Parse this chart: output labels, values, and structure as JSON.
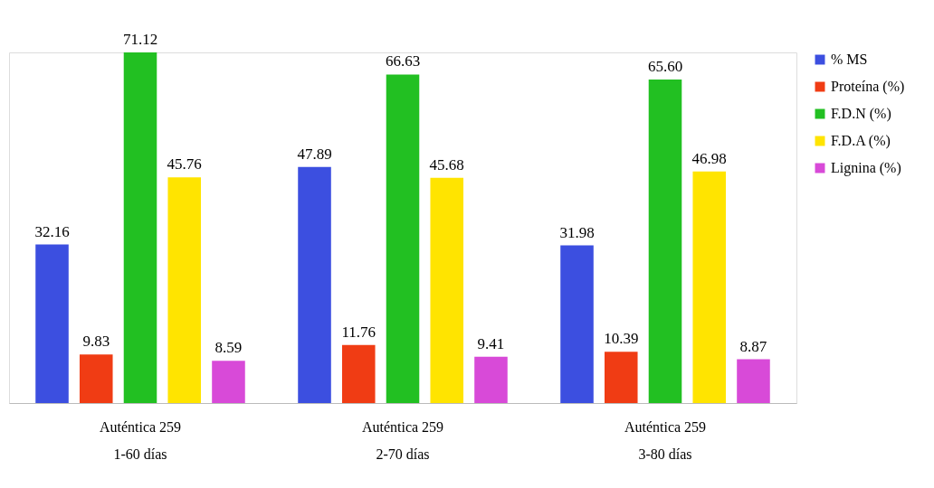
{
  "chart_data": {
    "type": "bar",
    "categories": [
      "Auténtica 259\n1-60 días",
      "Auténtica 259\n2-70 días",
      "Auténtica 259\n3-80 días"
    ],
    "series": [
      {
        "name": "% MS",
        "color": "#3c4fe0",
        "values": [
          32.16,
          47.89,
          31.98
        ],
        "value_labels": [
          "32.16",
          "47.89",
          "31.98"
        ]
      },
      {
        "name": "Proteína (%)",
        "color": "#f03c14",
        "values": [
          9.83,
          11.76,
          10.39
        ],
        "value_labels": [
          "9.83",
          "11.76",
          "10.39"
        ]
      },
      {
        "name": "F.D.N (%)",
        "color": "#22c022",
        "values": [
          71.12,
          66.63,
          65.6
        ],
        "value_labels": [
          "71.12",
          "66.63",
          "65.60"
        ]
      },
      {
        "name": "F.D.A (%)",
        "color": "#ffe400",
        "values": [
          45.76,
          45.68,
          46.98
        ],
        "value_labels": [
          "45.76",
          "45.68",
          "46.98"
        ]
      },
      {
        "name": "Lignina (%)",
        "color": "#d84ad8",
        "values": [
          8.59,
          9.41,
          8.87
        ],
        "value_labels": [
          "8.59",
          "9.41",
          "8.87"
        ]
      }
    ],
    "legend": "right",
    "tick_labels": "x"
  }
}
